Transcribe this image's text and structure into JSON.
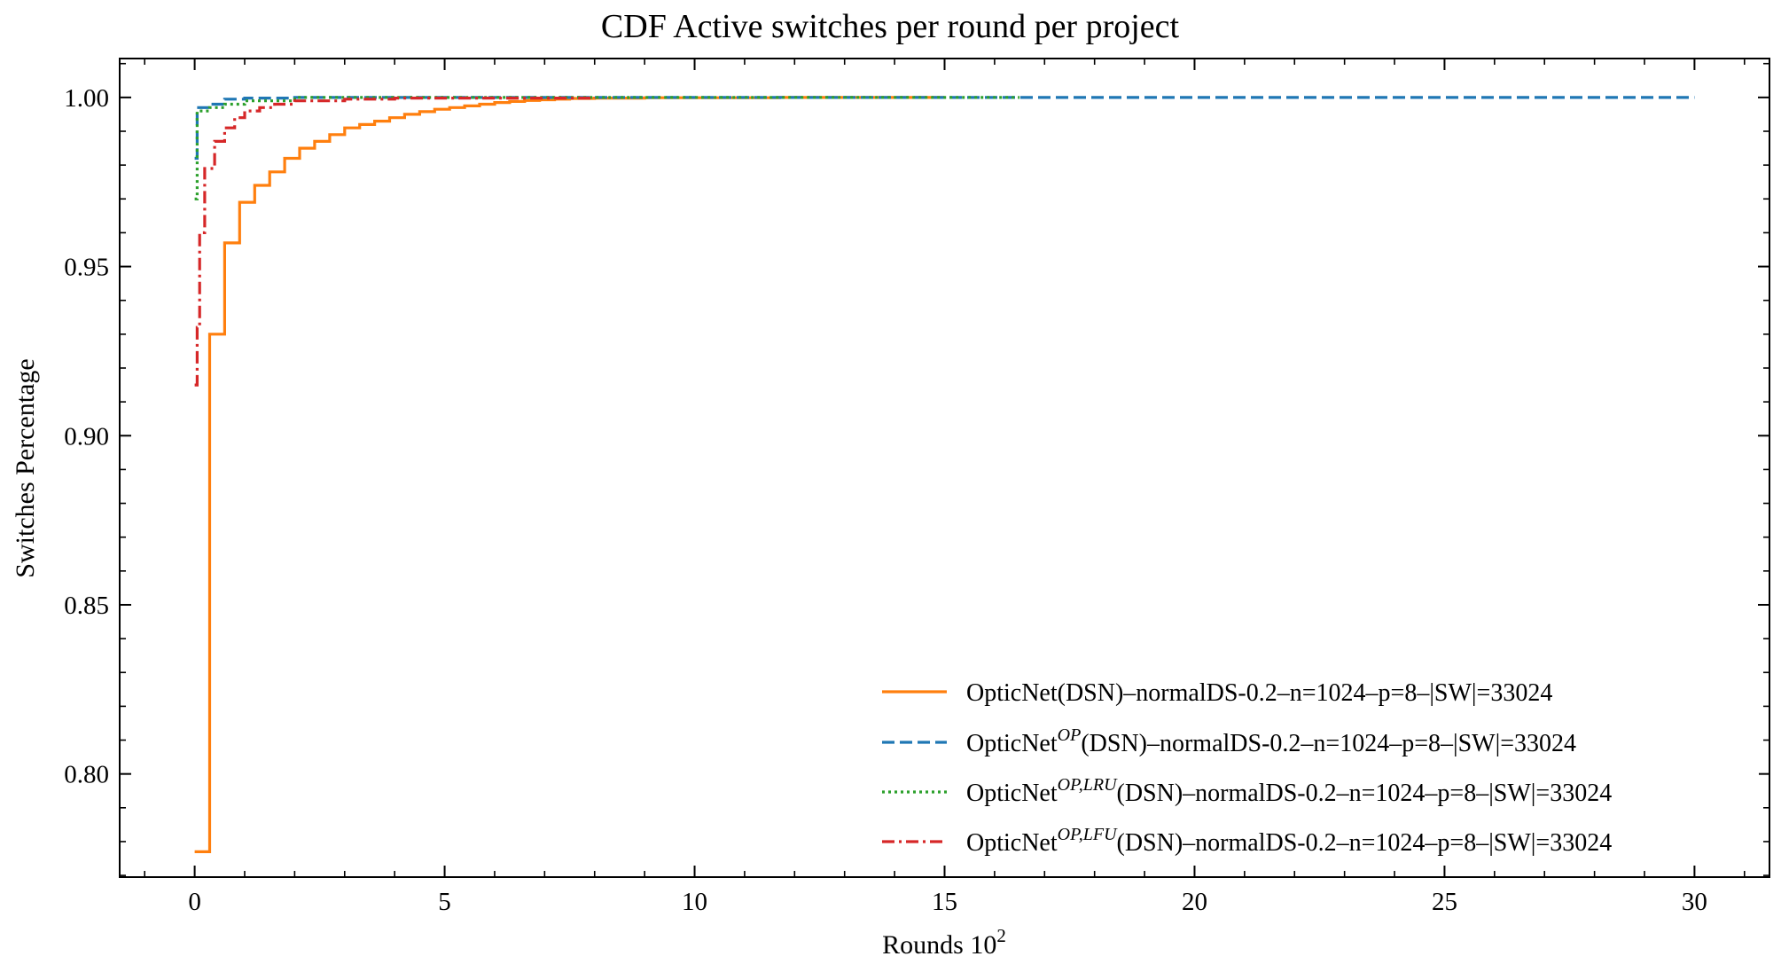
{
  "chart_data": {
    "type": "line",
    "title": "CDF Active switches per round per project",
    "xlabel": "Rounds 10",
    "xlabel_sup": "2",
    "ylabel": "Switches Percentage",
    "xlim": [
      -1.5,
      31.5
    ],
    "ylim": [
      0.7695,
      1.0115
    ],
    "xticks": [
      0,
      5,
      10,
      15,
      20,
      25,
      30
    ],
    "yticks": [
      0.8,
      0.85,
      0.9,
      0.95,
      1.0
    ],
    "xtick_labels": [
      "0",
      "5",
      "10",
      "15",
      "20",
      "25",
      "30"
    ],
    "ytick_labels": [
      "0.80",
      "0.85",
      "0.90",
      "0.95",
      "1.00"
    ],
    "grid": false,
    "legend_position": "lower-right",
    "series": [
      {
        "name": "OpticNet(DSN)–normalDS-0.2–n=1024–p=8–|SW|=33024",
        "legend_prefix": "OpticNet",
        "legend_sup": "",
        "legend_suffix": "(DSN)–normalDS-0.2–n=1024–p=8–|SW|=33024",
        "color": "#ff7f0e",
        "dash": "solid",
        "x": [
          0,
          0.3,
          0.6,
          0.9,
          1.2,
          1.5,
          1.8,
          2.1,
          2.4,
          2.7,
          3.0,
          3.3,
          3.6,
          3.9,
          4.2,
          4.5,
          4.8,
          5.1,
          5.4,
          5.7,
          6.0,
          6.3,
          6.6,
          6.9,
          7.2,
          7.5,
          8.0,
          9.0,
          11.7,
          15.0
        ],
        "y": [
          0.777,
          0.93,
          0.957,
          0.969,
          0.974,
          0.978,
          0.982,
          0.985,
          0.987,
          0.989,
          0.991,
          0.992,
          0.993,
          0.994,
          0.995,
          0.9958,
          0.9965,
          0.997,
          0.9975,
          0.998,
          0.9985,
          0.9988,
          0.9991,
          0.9993,
          0.9995,
          0.9997,
          0.9998,
          0.9999,
          1.0,
          1.0
        ]
      },
      {
        "name": "OpticNetOP(DSN)–normalDS-0.2–n=1024–p=8–|SW|=33024",
        "legend_prefix": "OpticNet",
        "legend_sup": "OP",
        "legend_suffix": "(DSN)–normalDS-0.2–n=1024–p=8–|SW|=33024",
        "color": "#1f77b4",
        "dash": "dashed",
        "x": [
          0,
          0.05,
          0.3,
          0.6,
          1.0,
          2.0,
          30.0
        ],
        "y": [
          0.982,
          0.997,
          0.998,
          0.9995,
          0.9998,
          1.0,
          1.0
        ]
      },
      {
        "name": "OpticNetOP,LRU(DSN)–normalDS-0.2–n=1024–p=8–|SW|=33024",
        "legend_prefix": "OpticNet",
        "legend_sup": "OP,LRU",
        "legend_suffix": "(DSN)–normalDS-0.2–n=1024–p=8–|SW|=33024",
        "color": "#2ca02c",
        "dash": "dotted",
        "x": [
          0,
          0.05,
          0.3,
          0.6,
          1.0,
          2.0,
          16.5
        ],
        "y": [
          0.97,
          0.996,
          0.997,
          0.998,
          0.999,
          1.0,
          1.0
        ]
      },
      {
        "name": "OpticNetOP,LFU(DSN)–normalDS-0.2–n=1024–p=8–|SW|=33024",
        "legend_prefix": "OpticNet",
        "legend_sup": "OP,LFU",
        "legend_suffix": "(DSN)–normalDS-0.2–n=1024–p=8–|SW|=33024",
        "color": "#d62728",
        "dash": "dashdot",
        "x": [
          0,
          0.05,
          0.1,
          0.2,
          0.4,
          0.6,
          0.8,
          1.0,
          1.3,
          1.6,
          2.0,
          3.0,
          4.0,
          8.0
        ],
        "y": [
          0.915,
          0.932,
          0.96,
          0.979,
          0.987,
          0.991,
          0.994,
          0.996,
          0.997,
          0.998,
          0.999,
          0.9995,
          0.9998,
          1.0
        ]
      }
    ]
  }
}
